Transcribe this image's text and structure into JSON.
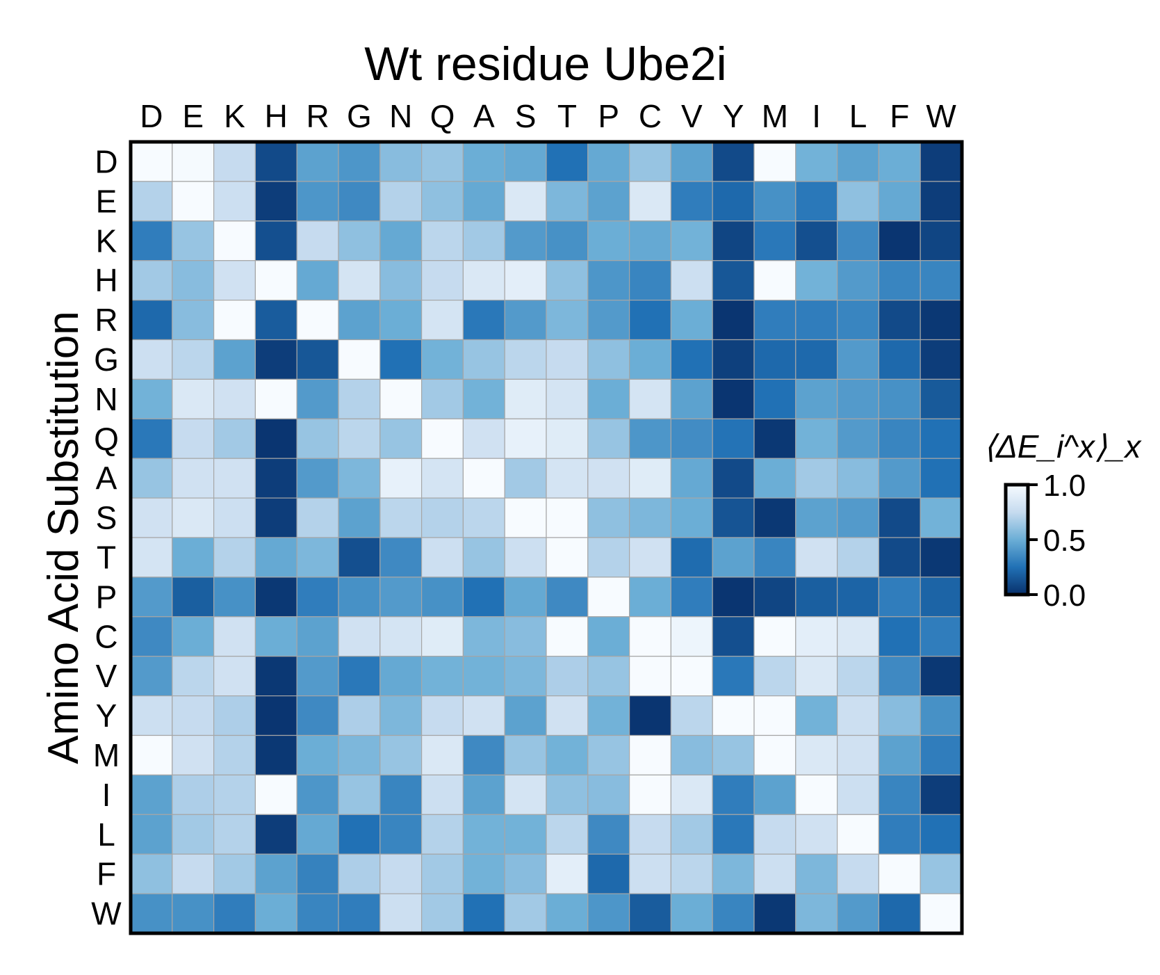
{
  "chart_data": {
    "type": "heatmap",
    "title": "Wt residue Ube2i",
    "xlabel": "",
    "ylabel": "Amino Acid Substitution",
    "x_categories": [
      "D",
      "E",
      "K",
      "H",
      "R",
      "G",
      "N",
      "Q",
      "A",
      "S",
      "T",
      "P",
      "C",
      "V",
      "Y",
      "M",
      "I",
      "L",
      "F",
      "W"
    ],
    "y_categories": [
      "D",
      "E",
      "K",
      "H",
      "R",
      "G",
      "N",
      "Q",
      "A",
      "S",
      "T",
      "P",
      "C",
      "V",
      "Y",
      "M",
      "I",
      "L",
      "F",
      "W"
    ],
    "colorbar": {
      "label": "⟨ΔE_i^x⟩_x",
      "ticks": [
        "1.0",
        "0.5",
        "0.0"
      ],
      "range": [
        0,
        1
      ],
      "colormap": "Blues_r",
      "low_color": "#08306b",
      "high_color": "#f7fbff"
    },
    "grid": true,
    "values": [
      [
        1.0,
        0.99,
        0.75,
        0.1,
        0.45,
        0.4,
        0.58,
        0.62,
        0.5,
        0.48,
        0.25,
        0.48,
        0.62,
        0.45,
        0.1,
        1.0,
        0.52,
        0.45,
        0.5,
        0.05
      ],
      [
        0.7,
        1.0,
        0.78,
        0.05,
        0.4,
        0.35,
        0.7,
        0.6,
        0.48,
        0.85,
        0.55,
        0.45,
        0.85,
        0.3,
        0.22,
        0.38,
        0.28,
        0.6,
        0.48,
        0.05
      ],
      [
        0.3,
        0.62,
        1.0,
        0.12,
        0.75,
        0.6,
        0.48,
        0.72,
        0.65,
        0.42,
        0.38,
        0.5,
        0.48,
        0.52,
        0.08,
        0.28,
        0.12,
        0.35,
        0.02,
        0.08
      ],
      [
        0.65,
        0.58,
        0.8,
        1.0,
        0.48,
        0.82,
        0.58,
        0.75,
        0.85,
        0.9,
        0.6,
        0.4,
        0.33,
        0.78,
        0.15,
        1.0,
        0.52,
        0.42,
        0.33,
        0.33
      ],
      [
        0.22,
        0.58,
        1.0,
        0.17,
        1.0,
        0.45,
        0.5,
        0.82,
        0.28,
        0.42,
        0.55,
        0.42,
        0.25,
        0.5,
        0.02,
        0.3,
        0.3,
        0.33,
        0.1,
        0.03
      ],
      [
        0.78,
        0.72,
        0.45,
        0.05,
        0.15,
        1.0,
        0.25,
        0.52,
        0.62,
        0.72,
        0.75,
        0.6,
        0.5,
        0.25,
        0.06,
        0.22,
        0.22,
        0.42,
        0.22,
        0.05
      ],
      [
        0.52,
        0.85,
        0.8,
        1.0,
        0.42,
        0.7,
        1.0,
        0.65,
        0.52,
        0.88,
        0.82,
        0.5,
        0.82,
        0.45,
        0.02,
        0.25,
        0.45,
        0.42,
        0.38,
        0.16
      ],
      [
        0.28,
        0.75,
        0.65,
        0.02,
        0.62,
        0.72,
        0.62,
        1.0,
        0.8,
        0.92,
        0.88,
        0.62,
        0.4,
        0.36,
        0.26,
        0.03,
        0.52,
        0.42,
        0.33,
        0.25
      ],
      [
        0.62,
        0.8,
        0.8,
        0.05,
        0.42,
        0.55,
        0.92,
        0.82,
        1.0,
        0.65,
        0.82,
        0.8,
        0.88,
        0.48,
        0.1,
        0.5,
        0.65,
        0.58,
        0.42,
        0.25
      ],
      [
        0.8,
        0.85,
        0.78,
        0.05,
        0.7,
        0.45,
        0.72,
        0.7,
        0.72,
        1.0,
        1.0,
        0.6,
        0.55,
        0.5,
        0.14,
        0.03,
        0.45,
        0.42,
        0.1,
        0.52
      ],
      [
        0.82,
        0.5,
        0.7,
        0.48,
        0.55,
        0.12,
        0.35,
        0.78,
        0.62,
        0.78,
        1.0,
        0.7,
        0.8,
        0.23,
        0.45,
        0.33,
        0.8,
        0.7,
        0.1,
        0.03
      ],
      [
        0.42,
        0.18,
        0.38,
        0.03,
        0.3,
        0.38,
        0.42,
        0.38,
        0.25,
        0.48,
        0.35,
        1.0,
        0.5,
        0.3,
        0.02,
        0.08,
        0.18,
        0.2,
        0.3,
        0.2
      ],
      [
        0.35,
        0.5,
        0.8,
        0.5,
        0.45,
        0.8,
        0.82,
        0.88,
        0.55,
        0.58,
        1.0,
        0.5,
        1.0,
        0.95,
        0.12,
        1.0,
        0.9,
        0.85,
        0.25,
        0.3
      ],
      [
        0.42,
        0.72,
        0.8,
        0.03,
        0.42,
        0.28,
        0.48,
        0.52,
        0.52,
        0.55,
        0.68,
        0.62,
        1.0,
        1.0,
        0.28,
        0.72,
        0.85,
        0.72,
        0.35,
        0.03
      ],
      [
        0.78,
        0.75,
        0.68,
        0.02,
        0.35,
        0.68,
        0.55,
        0.75,
        0.8,
        0.45,
        0.8,
        0.52,
        0.02,
        0.72,
        1.0,
        1.0,
        0.52,
        0.78,
        0.58,
        0.38
      ],
      [
        1.0,
        0.8,
        0.7,
        0.03,
        0.5,
        0.55,
        0.62,
        0.85,
        0.35,
        0.62,
        0.52,
        0.62,
        1.0,
        0.58,
        0.62,
        1.0,
        0.85,
        0.8,
        0.45,
        0.3
      ],
      [
        0.45,
        0.68,
        0.7,
        1.0,
        0.4,
        0.62,
        0.33,
        0.78,
        0.45,
        0.82,
        0.6,
        0.58,
        1.0,
        0.85,
        0.3,
        0.45,
        1.0,
        0.78,
        0.33,
        0.05
      ],
      [
        0.45,
        0.65,
        0.7,
        0.05,
        0.48,
        0.25,
        0.33,
        0.7,
        0.52,
        0.52,
        0.72,
        0.35,
        0.75,
        0.65,
        0.28,
        0.75,
        0.8,
        1.0,
        0.3,
        0.25
      ],
      [
        0.6,
        0.75,
        0.65,
        0.45,
        0.32,
        0.68,
        0.75,
        0.65,
        0.52,
        0.58,
        0.9,
        0.22,
        0.78,
        0.72,
        0.55,
        0.78,
        0.55,
        0.75,
        1.0,
        0.62
      ],
      [
        0.38,
        0.38,
        0.3,
        0.5,
        0.33,
        0.3,
        0.78,
        0.65,
        0.25,
        0.65,
        0.5,
        0.4,
        0.17,
        0.5,
        0.33,
        0.03,
        0.55,
        0.42,
        0.22,
        1.0
      ]
    ]
  }
}
